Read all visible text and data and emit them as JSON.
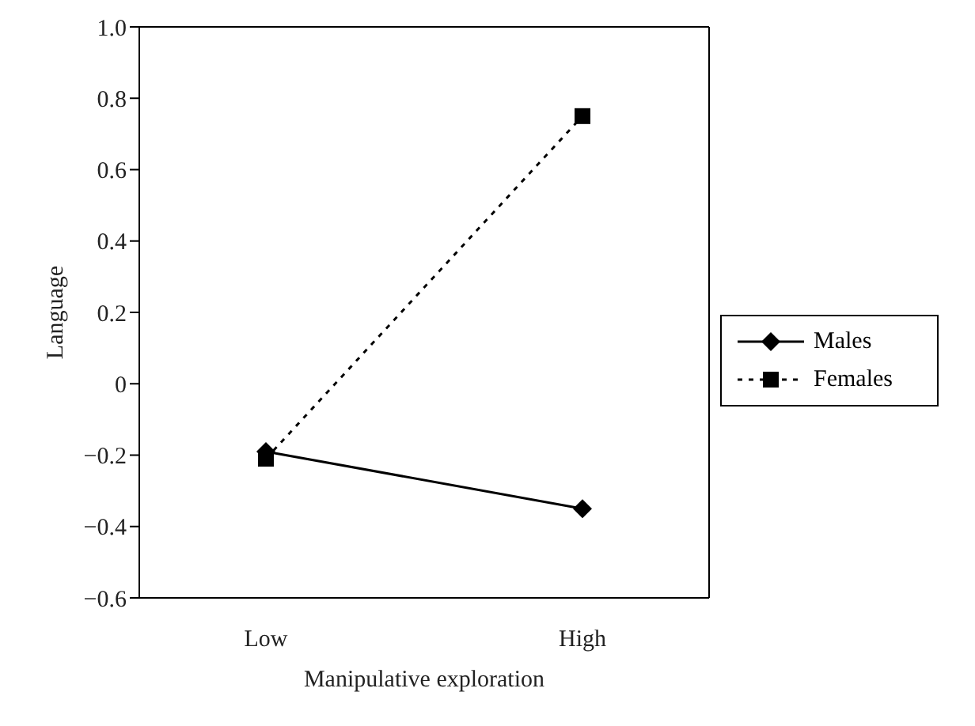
{
  "chart_data": {
    "type": "line",
    "xlabel": "Manipulative exploration",
    "ylabel": "Language",
    "categories": [
      "Low",
      "High"
    ],
    "ylim": [
      -0.6,
      1.0
    ],
    "yticks": [
      {
        "value": -0.6,
        "label": "−0.6"
      },
      {
        "value": -0.4,
        "label": "−0.4"
      },
      {
        "value": -0.2,
        "label": "−0.2"
      },
      0,
      0.2,
      0.4,
      0.6,
      0.8,
      {
        "value": 1.0,
        "label": "1.0"
      }
    ],
    "grid": false,
    "legend": "right",
    "series": [
      {
        "name": "Males",
        "color": "#000000",
        "values": [
          -0.19,
          -0.35
        ],
        "marker": "diamond",
        "line_style": "solid"
      },
      {
        "name": "Females",
        "color": "#000000",
        "values": [
          -0.21,
          0.75
        ],
        "marker": "square",
        "line_style": "dotted"
      }
    ]
  }
}
